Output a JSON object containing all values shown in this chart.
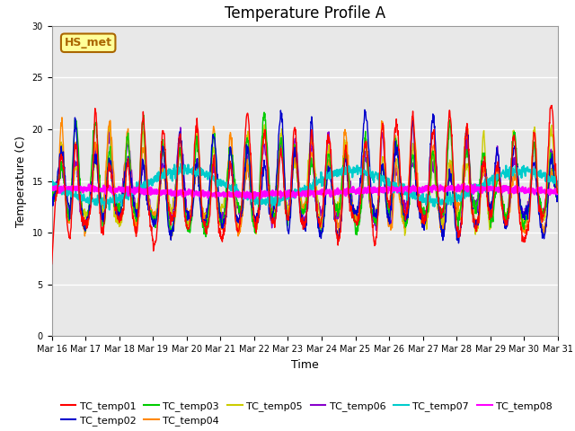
{
  "title": "Temperature Profile A",
  "xlabel": "Time",
  "ylabel": "Temperature (C)",
  "ylim": [
    0,
    30
  ],
  "x_tick_labels": [
    "Mar 16",
    "Mar 17",
    "Mar 18",
    "Mar 19",
    "Mar 20",
    "Mar 21",
    "Mar 22",
    "Mar 23",
    "Mar 24",
    "Mar 25",
    "Mar 26",
    "Mar 27",
    "Mar 28",
    "Mar 29",
    "Mar 30",
    "Mar 31"
  ],
  "series_colors": {
    "TC_temp01": "#ff0000",
    "TC_temp02": "#0000cc",
    "TC_temp03": "#00cc00",
    "TC_temp04": "#ff8800",
    "TC_temp05": "#cccc00",
    "TC_temp06": "#8800cc",
    "TC_temp07": "#00cccc",
    "TC_temp08": "#ff00ff"
  },
  "annotation_label": "HS_met",
  "annotation_color": "#aa6600",
  "annotation_bg": "#ffff99",
  "plot_bg": "#e8e8e8",
  "fig_bg": "#ffffff",
  "title_fontsize": 12,
  "axis_label_fontsize": 9,
  "tick_fontsize": 7,
  "legend_fontsize": 8,
  "grid_color": "#ffffff",
  "line_width": 1.0,
  "n_days": 15,
  "pts_per_day": 96,
  "base_temp": 13.5,
  "spike_positions": [
    0.3,
    0.7,
    1.3,
    1.7,
    2.25,
    2.7,
    3.3,
    3.8,
    4.3,
    4.8,
    5.3,
    5.8,
    6.3,
    6.8,
    7.2,
    7.7,
    8.2,
    8.7,
    9.3,
    9.8,
    10.2,
    10.7,
    11.3,
    11.8,
    12.3,
    12.8,
    13.2,
    13.7,
    14.3,
    14.8
  ]
}
